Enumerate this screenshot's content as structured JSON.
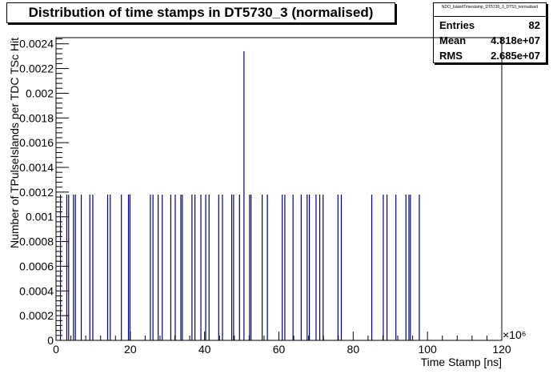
{
  "title": "Distribution of time stamps in DT5730_3 (normalised)",
  "stats_box": {
    "name": "NDO_IslandTimestamp_DT5730_3_DT53_normalised",
    "rows": [
      {
        "key": "Entries",
        "value": "82"
      },
      {
        "key": "Mean",
        "value": "4.818e+07"
      },
      {
        "key": "RMS",
        "value": "2.685e+07"
      }
    ]
  },
  "chart_data": {
    "type": "bar",
    "xlabel": "Time Stamp [ns]",
    "ylabel": "Number of TPulseIslands per TDC TSc Hit",
    "x_multiplier": "×10⁶",
    "xlim": [
      0,
      120
    ],
    "ylim": [
      0,
      0.00245
    ],
    "x_ticks": [
      0,
      20,
      40,
      60,
      80,
      100,
      120
    ],
    "x_tick_labels": [
      "0",
      "20",
      "40",
      "60",
      "80",
      "100",
      "120"
    ],
    "y_ticks": [
      0,
      0.0002,
      0.0004,
      0.0006,
      0.0008,
      0.001,
      0.0012,
      0.0014,
      0.0016,
      0.0018,
      0.002,
      0.0022,
      0.0024
    ],
    "y_tick_labels": [
      "0",
      "0.0002",
      "0.0004",
      "0.0006",
      "0.0008",
      "0.001",
      "0.0012",
      "0.0014",
      "0.0016",
      "0.0018",
      "0.002",
      "0.0022",
      "0.0024"
    ],
    "bar_color": "#000080",
    "bins_x": [
      1.2,
      2.9,
      3.4,
      4.7,
      5.2,
      6.8,
      9.1,
      9.9,
      13.9,
      14.6,
      17.6,
      19.5,
      19.9,
      25.4,
      26.1,
      27.5,
      28.6,
      30.9,
      32.1,
      33.6,
      34.0,
      36.6,
      37.4,
      39.0,
      40.3,
      41.2,
      43.8,
      44.8,
      47.3,
      47.8,
      49.4,
      50.6,
      52.1,
      52.5,
      55.5,
      56.9,
      60.9,
      61.6,
      63.8,
      66.0,
      67.6,
      68.2,
      70.0,
      71.0,
      71.9,
      75.9,
      76.8,
      85.0,
      88.1,
      89.1,
      91.5,
      94.2,
      95.0,
      95.4,
      97.8
    ],
    "bins_y": [
      0.00118,
      0.00118,
      0.00118,
      0.00118,
      0.00118,
      0.00118,
      0.00118,
      0.00118,
      0.00118,
      0.00118,
      0.00118,
      0.00118,
      0.00118,
      0.00118,
      0.00118,
      0.00118,
      0.00118,
      0.00118,
      0.00118,
      0.00118,
      0.00118,
      0.00118,
      0.00118,
      0.00118,
      0.00118,
      0.00118,
      0.00118,
      0.00118,
      0.00118,
      0.00118,
      0.00118,
      0.00234,
      0.00118,
      0.00118,
      0.00118,
      0.00118,
      0.00118,
      0.00118,
      0.00118,
      0.00118,
      0.00118,
      0.00118,
      0.00118,
      0.00118,
      0.00118,
      0.00118,
      0.00118,
      0.00118,
      0.00118,
      0.00118,
      0.00118,
      0.00118,
      0.00118,
      0.00118,
      0.00118
    ]
  }
}
